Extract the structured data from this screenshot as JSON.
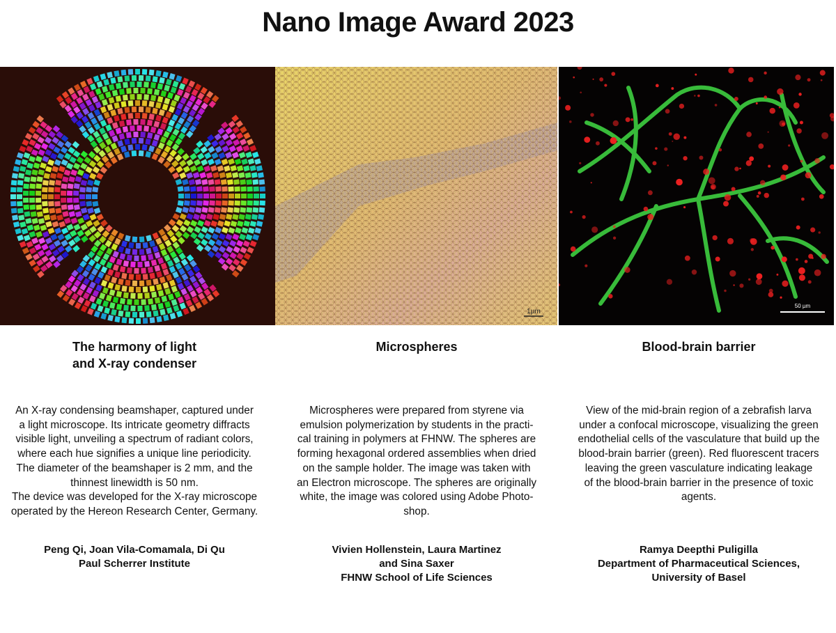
{
  "title": "Nano Image Award 2023",
  "panels": [
    {
      "title": [
        "The harmony of light",
        "and X-ray condenser"
      ],
      "description": [
        "An X-ray condensing beamshaper, captured under",
        "a light microscope. Its intricate geometry diffracts",
        "visible light, unveiling a spectrum of radiant colors,",
        "where each hue signifies a unique line periodicity.",
        "The diameter of the beamshaper is 2 mm, and the",
        "thinnest linewidth is 50 nm.",
        "The device was developed for the X-ray microscope",
        "operated by the Hereon Research Center, Germany."
      ],
      "authors": [
        "Peng Qi, Joan Vila-Comamala, Di Qu",
        "Paul Scherrer Institute"
      ]
    },
    {
      "title": [
        "Microspheres"
      ],
      "scale_bar": "1µm",
      "description": [
        "Microspheres were prepared from styrene via",
        "emulsion polymerization by students in the practi-",
        "cal training in polymers at FHNW. The spheres are",
        "forming hexagonal ordered assemblies when dried",
        "on the sample holder. The image was taken with",
        "an Electron microscope. The spheres are originally",
        "white, the image was colored using Adobe Photo-",
        "shop."
      ],
      "authors": [
        "Vivien Hollenstein, Laura Martinez",
        "and Sina Saxer",
        "FHNW School of Life Sciences"
      ]
    },
    {
      "title": [
        "Blood-brain barrier"
      ],
      "scale_bar": "50 µm",
      "description": [
        "View of the mid-brain region of a zebrafish larva",
        "under a confocal microscope, visualizing the green",
        "endothelial cells of the vasculature that build up the",
        "blood-brain barrier (green). Red fluorescent tracers",
        "leaving the green vasculature indicating leakage",
        "of the blood-brain barrier in the presence of toxic",
        "agents."
      ],
      "authors": [
        "Ramya Deepthi Puligilla",
        "Department of Pharmaceutical Sciences,",
        "University of Basel"
      ]
    }
  ]
}
